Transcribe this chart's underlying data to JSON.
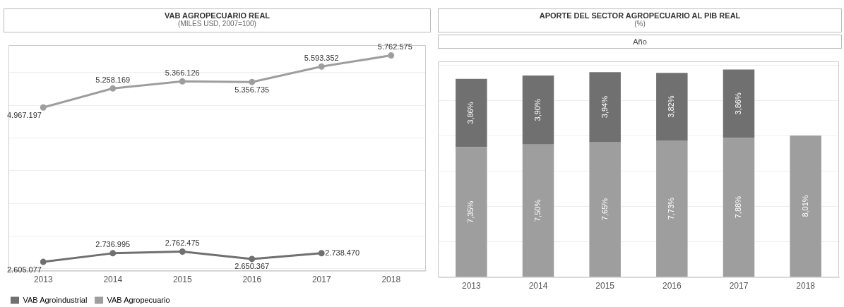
{
  "chart_data": [
    {
      "type": "line",
      "title": "VAB AGROPECUARIO REAL",
      "subtitle": "(MILES USD, 2007=100)",
      "categories": [
        "2013",
        "2014",
        "2015",
        "2016",
        "2017",
        "2018"
      ],
      "series": [
        {
          "name": "VAB Agroindustrial",
          "color": "#707070",
          "values": [
            2605077,
            2736995,
            2762475,
            2650367,
            2738470,
            null
          ],
          "value_labels": [
            "2.605.077",
            "2.736.995",
            "2.762.475",
            "2.650.367",
            "2.738.470",
            null
          ]
        },
        {
          "name": "VAB Agropecuario",
          "color": "#9e9e9e",
          "values": [
            4967197,
            5258169,
            5366126,
            5356735,
            5593352,
            5762575
          ],
          "value_labels": [
            "4.967.197",
            "5.258.169",
            "5.366.126",
            "5.356.735",
            "5.593.352",
            "5.762.575"
          ]
        }
      ],
      "ylim": [
        2470000,
        5920000
      ],
      "yticks": [
        {
          "value": 2500000,
          "label": null
        },
        {
          "value": 3000000,
          "label": null
        },
        {
          "value": 3500000,
          "label": null
        },
        {
          "value": 4000000,
          "label": null
        },
        {
          "value": 4500000,
          "label": null
        },
        {
          "value": 5000000,
          "label": null
        },
        {
          "value": 5500000,
          "label": null
        }
      ],
      "tick_labels": "x",
      "grid": "y",
      "marker": "circle",
      "legend": "bottom left"
    },
    {
      "type": "bar",
      "title": "APORTE DEL SECTOR AGROPECUARIO AL PIB REAL",
      "subtitle": "(%)",
      "xlabel": "Año",
      "stacked": true,
      "categories": [
        "2013",
        "2014",
        "2015",
        "2016",
        "2017",
        "2018"
      ],
      "series": [
        {
          "color": "#9e9e9e",
          "values": [
            7.35,
            7.5,
            7.65,
            7.73,
            7.88,
            8.01
          ],
          "value_labels": [
            "7,35%",
            "7,50%",
            "7,65%",
            "7,73%",
            "7,88%",
            "8,01%"
          ]
        },
        {
          "color": "#707070",
          "values": [
            3.86,
            3.9,
            3.94,
            3.82,
            3.86,
            null
          ],
          "value_labels": [
            "3,86%",
            "3,90%",
            "3,94%",
            "3,82%",
            "3,86%",
            null
          ]
        }
      ],
      "ylim": [
        0,
        12.2
      ],
      "yticks": [
        {
          "value": 0,
          "label": null
        },
        {
          "value": 2,
          "label": null
        },
        {
          "value": 4,
          "label": null
        },
        {
          "value": 6,
          "label": null
        },
        {
          "value": 8,
          "label": null
        },
        {
          "value": 10,
          "label": null
        },
        {
          "value": 12,
          "label": null
        }
      ],
      "tick_labels": "x",
      "grid": "y",
      "legend": false
    }
  ]
}
